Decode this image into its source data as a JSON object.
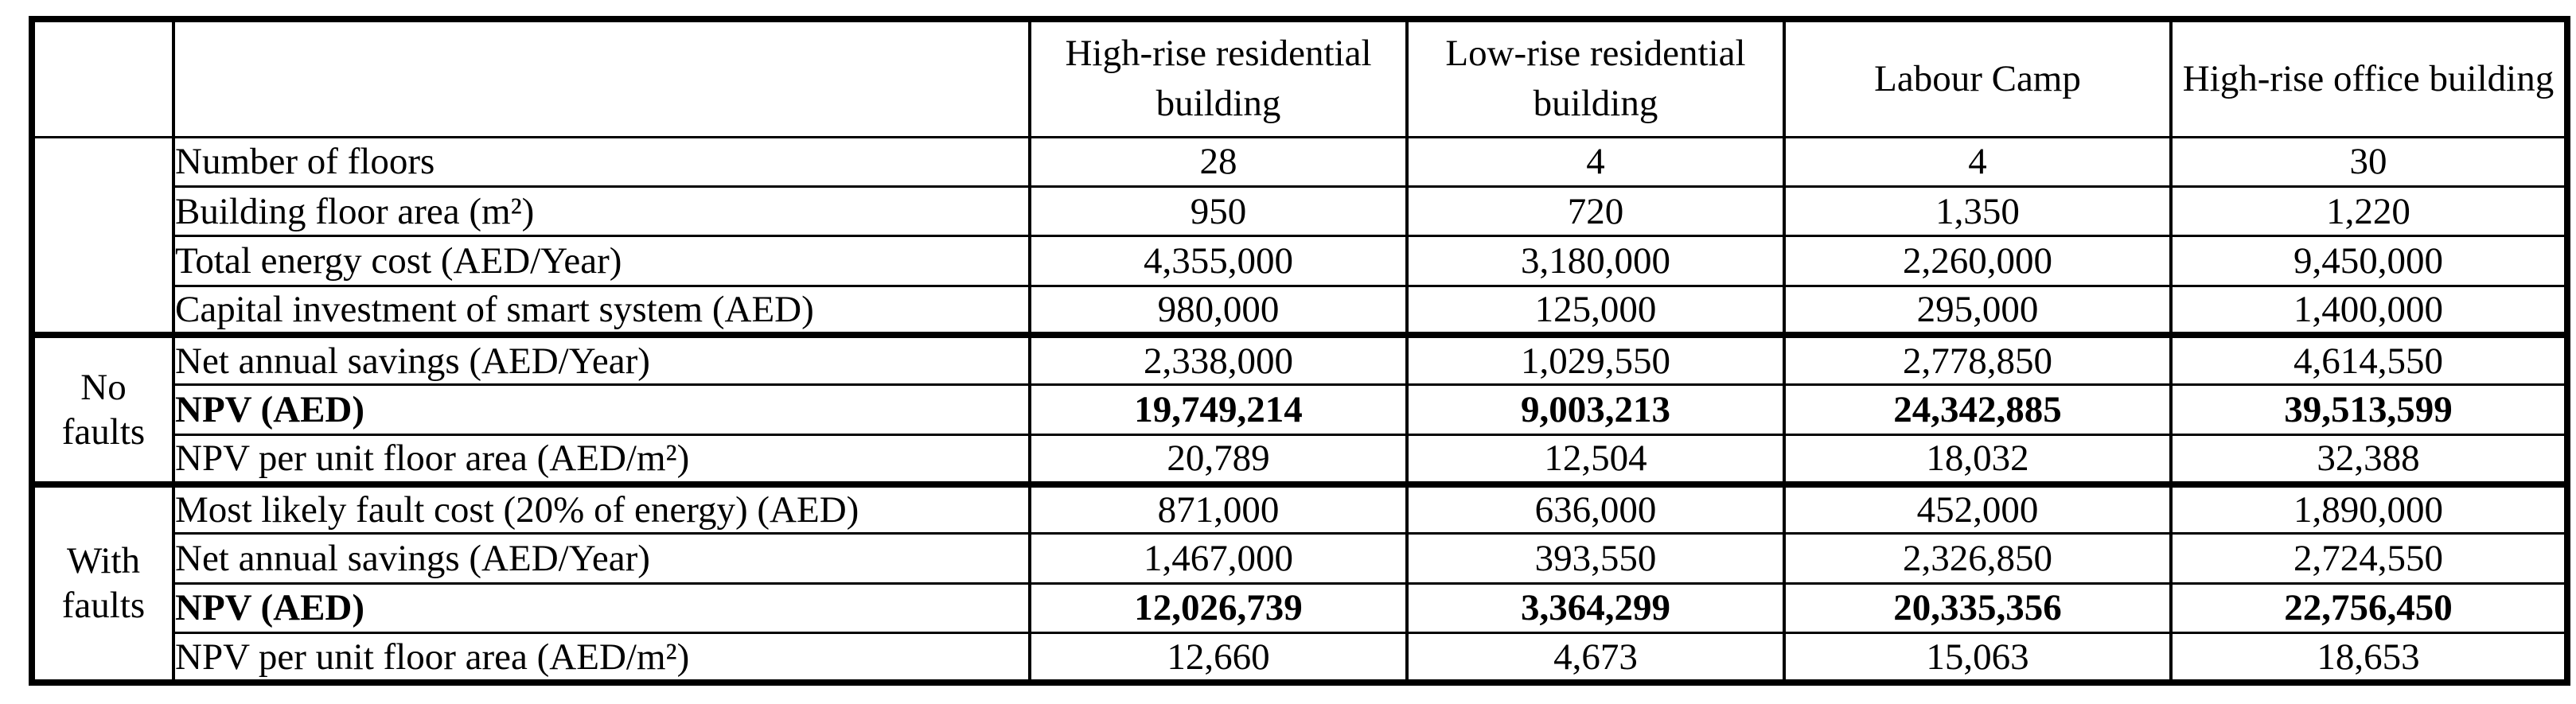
{
  "table": {
    "columns": [
      "High-rise residential building",
      "Low-rise residential building",
      "Labour Camp",
      "High-rise office building"
    ],
    "corner_group": "",
    "corner_label": "",
    "sections": [
      {
        "group": "",
        "rows": [
          {
            "label": "Number of floors",
            "bold": false,
            "values": [
              "28",
              "4",
              "4",
              "30"
            ]
          },
          {
            "label": "Building floor area (m²)",
            "bold": false,
            "values": [
              "950",
              "720",
              "1,350",
              "1,220"
            ]
          },
          {
            "label": "Total energy cost (AED/Year)",
            "bold": false,
            "values": [
              "4,355,000",
              "3,180,000",
              "2,260,000",
              "9,450,000"
            ]
          },
          {
            "label": "Capital investment of smart system (AED)",
            "bold": false,
            "values": [
              "980,000",
              "125,000",
              "295,000",
              "1,400,000"
            ]
          }
        ]
      },
      {
        "group": "No faults",
        "rows": [
          {
            "label": "Net annual savings (AED/Year)",
            "bold": false,
            "values": [
              "2,338,000",
              "1,029,550",
              "2,778,850",
              "4,614,550"
            ]
          },
          {
            "label": "NPV (AED)",
            "bold": true,
            "values": [
              "19,749,214",
              "9,003,213",
              "24,342,885",
              "39,513,599"
            ]
          },
          {
            "label": "NPV per unit floor area (AED/m²)",
            "bold": false,
            "values": [
              "20,789",
              "12,504",
              "18,032",
              "32,388"
            ]
          }
        ]
      },
      {
        "group": "With faults",
        "rows": [
          {
            "label": "Most likely fault cost (20% of energy) (AED)",
            "bold": false,
            "values": [
              "871,000",
              "636,000",
              "452,000",
              "1,890,000"
            ]
          },
          {
            "label": "Net annual savings (AED/Year)",
            "bold": false,
            "values": [
              "1,467,000",
              "393,550",
              "2,326,850",
              "2,724,550"
            ]
          },
          {
            "label": "NPV (AED)",
            "bold": true,
            "values": [
              "12,026,739",
              "3,364,299",
              "20,335,356",
              "22,756,450"
            ]
          },
          {
            "label": "NPV per unit floor area (AED/m²)",
            "bold": false,
            "values": [
              "12,660",
              "4,673",
              "15,063",
              "18,653"
            ]
          }
        ]
      }
    ]
  }
}
